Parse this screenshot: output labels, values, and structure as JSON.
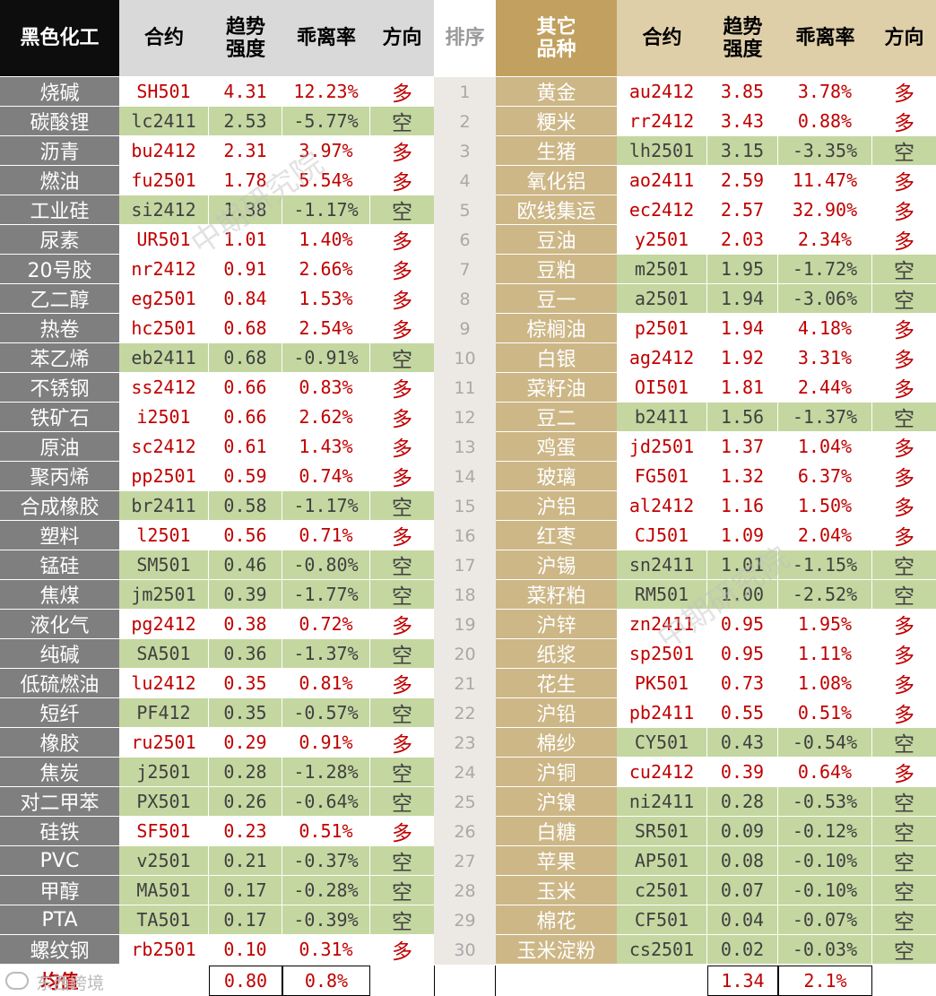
{
  "headers": {
    "left_category": "黑色化工",
    "contract": "合约",
    "trend_strength": "趋势\n强度",
    "deviation": "乖离率",
    "direction": "方向",
    "rank": "排序",
    "right_category": "其它\n品种"
  },
  "left_rows": [
    {
      "name": "烧碱",
      "contract": "SH501",
      "trend": "4.31",
      "deviation": "12.23%",
      "direction": "多"
    },
    {
      "name": "碳酸锂",
      "contract": "lc2411",
      "trend": "2.53",
      "deviation": "-5.77%",
      "direction": "空"
    },
    {
      "name": "沥青",
      "contract": "bu2412",
      "trend": "2.31",
      "deviation": "3.97%",
      "direction": "多"
    },
    {
      "name": "燃油",
      "contract": "fu2501",
      "trend": "1.78",
      "deviation": "5.54%",
      "direction": "多"
    },
    {
      "name": "工业硅",
      "contract": "si2412",
      "trend": "1.38",
      "deviation": "-1.17%",
      "direction": "空"
    },
    {
      "name": "尿素",
      "contract": "UR501",
      "trend": "1.01",
      "deviation": "1.40%",
      "direction": "多"
    },
    {
      "name": "20号胶",
      "contract": "nr2412",
      "trend": "0.91",
      "deviation": "2.66%",
      "direction": "多"
    },
    {
      "name": "乙二醇",
      "contract": "eg2501",
      "trend": "0.84",
      "deviation": "1.53%",
      "direction": "多"
    },
    {
      "name": "热卷",
      "contract": "hc2501",
      "trend": "0.68",
      "deviation": "2.54%",
      "direction": "多"
    },
    {
      "name": "苯乙烯",
      "contract": "eb2411",
      "trend": "0.68",
      "deviation": "-0.91%",
      "direction": "空"
    },
    {
      "name": "不锈钢",
      "contract": "ss2412",
      "trend": "0.66",
      "deviation": "0.83%",
      "direction": "多"
    },
    {
      "name": "铁矿石",
      "contract": "i2501",
      "trend": "0.66",
      "deviation": "2.62%",
      "direction": "多"
    },
    {
      "name": "原油",
      "contract": "sc2412",
      "trend": "0.61",
      "deviation": "1.43%",
      "direction": "多"
    },
    {
      "name": "聚丙烯",
      "contract": "pp2501",
      "trend": "0.59",
      "deviation": "0.74%",
      "direction": "多"
    },
    {
      "name": "合成橡胶",
      "contract": "br2411",
      "trend": "0.58",
      "deviation": "-1.17%",
      "direction": "空"
    },
    {
      "name": "塑料",
      "contract": "l2501",
      "trend": "0.56",
      "deviation": "0.71%",
      "direction": "多"
    },
    {
      "name": "锰硅",
      "contract": "SM501",
      "trend": "0.46",
      "deviation": "-0.80%",
      "direction": "空"
    },
    {
      "name": "焦煤",
      "contract": "jm2501",
      "trend": "0.39",
      "deviation": "-1.77%",
      "direction": "空"
    },
    {
      "name": "液化气",
      "contract": "pg2412",
      "trend": "0.38",
      "deviation": "0.72%",
      "direction": "多"
    },
    {
      "name": "纯碱",
      "contract": "SA501",
      "trend": "0.36",
      "deviation": "-1.37%",
      "direction": "空"
    },
    {
      "name": "低硫燃油",
      "contract": "lu2412",
      "trend": "0.35",
      "deviation": "0.81%",
      "direction": "多"
    },
    {
      "name": "短纤",
      "contract": "PF412",
      "trend": "0.35",
      "deviation": "-0.57%",
      "direction": "空"
    },
    {
      "name": "橡胶",
      "contract": "ru2501",
      "trend": "0.29",
      "deviation": "0.91%",
      "direction": "多"
    },
    {
      "name": "焦炭",
      "contract": "j2501",
      "trend": "0.28",
      "deviation": "-1.28%",
      "direction": "空"
    },
    {
      "name": "对二甲苯",
      "contract": "PX501",
      "trend": "0.26",
      "deviation": "-0.64%",
      "direction": "空"
    },
    {
      "name": "硅铁",
      "contract": "SF501",
      "trend": "0.23",
      "deviation": "0.51%",
      "direction": "多"
    },
    {
      "name": "PVC",
      "contract": "v2501",
      "trend": "0.21",
      "deviation": "-0.37%",
      "direction": "空"
    },
    {
      "name": "甲醇",
      "contract": "MA501",
      "trend": "0.17",
      "deviation": "-0.28%",
      "direction": "空"
    },
    {
      "name": "PTA",
      "contract": "TA501",
      "trend": "0.17",
      "deviation": "-0.39%",
      "direction": "空"
    },
    {
      "name": "螺纹钢",
      "contract": "rb2501",
      "trend": "0.10",
      "deviation": "0.31%",
      "direction": "多"
    }
  ],
  "right_rows": [
    {
      "name": "黄金",
      "contract": "au2412",
      "trend": "3.85",
      "deviation": "3.78%",
      "direction": "多"
    },
    {
      "name": "粳米",
      "contract": "rr2412",
      "trend": "3.43",
      "deviation": "0.88%",
      "direction": "多"
    },
    {
      "name": "生猪",
      "contract": "lh2501",
      "trend": "3.15",
      "deviation": "-3.35%",
      "direction": "空"
    },
    {
      "name": "氧化铝",
      "contract": "ao2411",
      "trend": "2.59",
      "deviation": "11.47%",
      "direction": "多"
    },
    {
      "name": "欧线集运",
      "contract": "ec2412",
      "trend": "2.57",
      "deviation": "32.90%",
      "direction": "多"
    },
    {
      "name": "豆油",
      "contract": "y2501",
      "trend": "2.03",
      "deviation": "2.34%",
      "direction": "多"
    },
    {
      "name": "豆粕",
      "contract": "m2501",
      "trend": "1.95",
      "deviation": "-1.72%",
      "direction": "空"
    },
    {
      "name": "豆一",
      "contract": "a2501",
      "trend": "1.94",
      "deviation": "-3.06%",
      "direction": "空"
    },
    {
      "name": "棕榈油",
      "contract": "p2501",
      "trend": "1.94",
      "deviation": "4.18%",
      "direction": "多"
    },
    {
      "name": "白银",
      "contract": "ag2412",
      "trend": "1.92",
      "deviation": "3.31%",
      "direction": "多"
    },
    {
      "name": "菜籽油",
      "contract": "OI501",
      "trend": "1.81",
      "deviation": "2.44%",
      "direction": "多"
    },
    {
      "name": "豆二",
      "contract": "b2411",
      "trend": "1.56",
      "deviation": "-1.37%",
      "direction": "空"
    },
    {
      "name": "鸡蛋",
      "contract": "jd2501",
      "trend": "1.37",
      "deviation": "1.04%",
      "direction": "多"
    },
    {
      "name": "玻璃",
      "contract": "FG501",
      "trend": "1.32",
      "deviation": "6.37%",
      "direction": "多"
    },
    {
      "name": "沪铝",
      "contract": "al2412",
      "trend": "1.16",
      "deviation": "1.50%",
      "direction": "多"
    },
    {
      "name": "红枣",
      "contract": "CJ501",
      "trend": "1.09",
      "deviation": "2.04%",
      "direction": "多"
    },
    {
      "name": "沪锡",
      "contract": "sn2411",
      "trend": "1.01",
      "deviation": "-1.15%",
      "direction": "空"
    },
    {
      "name": "菜籽粕",
      "contract": "RM501",
      "trend": "1.00",
      "deviation": "-2.52%",
      "direction": "空"
    },
    {
      "name": "沪锌",
      "contract": "zn2411",
      "trend": "0.95",
      "deviation": "1.95%",
      "direction": "多"
    },
    {
      "name": "纸浆",
      "contract": "sp2501",
      "trend": "0.95",
      "deviation": "1.11%",
      "direction": "多"
    },
    {
      "name": "花生",
      "contract": "PK501",
      "trend": "0.73",
      "deviation": "1.08%",
      "direction": "多"
    },
    {
      "name": "沪铅",
      "contract": "pb2411",
      "trend": "0.55",
      "deviation": "0.51%",
      "direction": "多"
    },
    {
      "name": "棉纱",
      "contract": "CY501",
      "trend": "0.43",
      "deviation": "-0.54%",
      "direction": "空"
    },
    {
      "name": "沪铜",
      "contract": "cu2412",
      "trend": "0.39",
      "deviation": "0.64%",
      "direction": "多"
    },
    {
      "name": "沪镍",
      "contract": "ni2411",
      "trend": "0.28",
      "deviation": "-0.53%",
      "direction": "空"
    },
    {
      "name": "白糖",
      "contract": "SR501",
      "trend": "0.09",
      "deviation": "-0.12%",
      "direction": "空"
    },
    {
      "name": "苹果",
      "contract": "AP501",
      "trend": "0.08",
      "deviation": "-0.10%",
      "direction": "空"
    },
    {
      "name": "玉米",
      "contract": "c2501",
      "trend": "0.07",
      "deviation": "-0.10%",
      "direction": "空"
    },
    {
      "name": "棉花",
      "contract": "CF501",
      "trend": "0.04",
      "deviation": "-0.07%",
      "direction": "空"
    },
    {
      "name": "玉米淀粉",
      "contract": "cs2501",
      "trend": "0.02",
      "deviation": "-0.03%",
      "direction": "空"
    }
  ],
  "ranks": [
    "1",
    "2",
    "3",
    "4",
    "5",
    "6",
    "7",
    "8",
    "9",
    "10",
    "11",
    "12",
    "13",
    "14",
    "15",
    "16",
    "17",
    "18",
    "19",
    "20",
    "21",
    "22",
    "23",
    "24",
    "25",
    "26",
    "27",
    "28",
    "29",
    "30"
  ],
  "averages": {
    "label": "均值",
    "left_trend": "0.80",
    "left_deviation": "0.8%",
    "right_trend": "1.34",
    "right_deviation": "2.1%"
  },
  "watermark_text": "中期研究院",
  "footer_logo_text": "东西跨境",
  "colors": {
    "long_text": "#c00000",
    "short_text": "#404040",
    "long_bg": "#ffffff",
    "short_bg": "#c4d7a0"
  }
}
